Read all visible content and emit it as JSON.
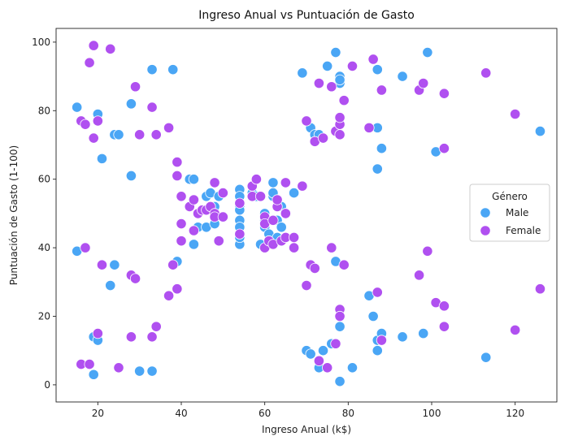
{
  "chart_data": {
    "type": "scatter",
    "title": "Ingreso Anual vs Puntuación de Gasto",
    "xlabel": "Ingreso Anual (k$)",
    "ylabel": "Puntuación de Gasto (1-100)",
    "xlim": [
      10,
      130
    ],
    "ylim": [
      -5,
      104
    ],
    "xticks": [
      20,
      40,
      60,
      80,
      100,
      120
    ],
    "yticks": [
      0,
      20,
      40,
      60,
      80,
      100
    ],
    "grid": false,
    "legend": {
      "title": "Género",
      "placement": "center-right"
    },
    "series": [
      {
        "name": "Male",
        "color": "#4aa6f5",
        "points": [
          [
            15,
            39
          ],
          [
            15,
            81
          ],
          [
            19,
            3
          ],
          [
            19,
            14
          ],
          [
            20,
            79
          ],
          [
            20,
            13
          ],
          [
            21,
            66
          ],
          [
            23,
            29
          ],
          [
            24,
            35
          ],
          [
            24,
            73
          ],
          [
            25,
            73
          ],
          [
            28,
            82
          ],
          [
            28,
            61
          ],
          [
            30,
            4
          ],
          [
            33,
            4
          ],
          [
            33,
            92
          ],
          [
            38,
            92
          ],
          [
            39,
            36
          ],
          [
            42,
            60
          ],
          [
            43,
            60
          ],
          [
            43,
            41
          ],
          [
            44,
            46
          ],
          [
            46,
            46
          ],
          [
            46,
            55
          ],
          [
            47,
            56
          ],
          [
            48,
            59
          ],
          [
            48,
            52
          ],
          [
            48,
            47
          ],
          [
            49,
            55
          ],
          [
            54,
            52
          ],
          [
            54,
            57
          ],
          [
            54,
            55
          ],
          [
            54,
            51
          ],
          [
            54,
            48
          ],
          [
            54,
            46
          ],
          [
            54,
            41
          ],
          [
            54,
            43
          ],
          [
            57,
            56
          ],
          [
            58,
            55
          ],
          [
            59,
            41
          ],
          [
            60,
            50
          ],
          [
            60,
            48
          ],
          [
            60,
            46
          ],
          [
            61,
            44
          ],
          [
            61,
            42
          ],
          [
            62,
            59
          ],
          [
            62,
            55
          ],
          [
            62,
            56
          ],
          [
            63,
            43
          ],
          [
            63,
            48
          ],
          [
            64,
            46
          ],
          [
            64,
            52
          ],
          [
            65,
            50
          ],
          [
            67,
            56
          ],
          [
            69,
            91
          ],
          [
            70,
            10
          ],
          [
            71,
            9
          ],
          [
            71,
            75
          ],
          [
            72,
            73
          ],
          [
            73,
            5
          ],
          [
            73,
            73
          ],
          [
            74,
            10
          ],
          [
            75,
            93
          ],
          [
            76,
            12
          ],
          [
            77,
            97
          ],
          [
            77,
            36
          ],
          [
            78,
            90
          ],
          [
            78,
            88
          ],
          [
            78,
            89
          ],
          [
            78,
            17
          ],
          [
            78,
            1
          ],
          [
            81,
            5
          ],
          [
            85,
            26
          ],
          [
            86,
            20
          ],
          [
            87,
            63
          ],
          [
            87,
            92
          ],
          [
            87,
            75
          ],
          [
            87,
            13
          ],
          [
            87,
            10
          ],
          [
            88,
            69
          ],
          [
            88,
            15
          ],
          [
            93,
            14
          ],
          [
            93,
            90
          ],
          [
            98,
            15
          ],
          [
            99,
            97
          ],
          [
            101,
            68
          ],
          [
            113,
            8
          ],
          [
            126,
            74
          ]
        ]
      },
      {
        "name": "Female",
        "color": "#b050f0",
        "points": [
          [
            16,
            6
          ],
          [
            16,
            77
          ],
          [
            17,
            40
          ],
          [
            17,
            76
          ],
          [
            18,
            6
          ],
          [
            18,
            94
          ],
          [
            19,
            99
          ],
          [
            19,
            72
          ],
          [
            20,
            77
          ],
          [
            20,
            15
          ],
          [
            21,
            35
          ],
          [
            23,
            98
          ],
          [
            25,
            5
          ],
          [
            28,
            14
          ],
          [
            28,
            32
          ],
          [
            29,
            87
          ],
          [
            29,
            31
          ],
          [
            30,
            73
          ],
          [
            33,
            14
          ],
          [
            33,
            81
          ],
          [
            34,
            17
          ],
          [
            34,
            73
          ],
          [
            37,
            26
          ],
          [
            37,
            75
          ],
          [
            38,
            35
          ],
          [
            39,
            61
          ],
          [
            39,
            28
          ],
          [
            39,
            65
          ],
          [
            40,
            55
          ],
          [
            40,
            47
          ],
          [
            40,
            42
          ],
          [
            42,
            52
          ],
          [
            43,
            54
          ],
          [
            43,
            45
          ],
          [
            44,
            50
          ],
          [
            45,
            51
          ],
          [
            46,
            51
          ],
          [
            47,
            52
          ],
          [
            48,
            50
          ],
          [
            48,
            49
          ],
          [
            48,
            59
          ],
          [
            49,
            42
          ],
          [
            50,
            56
          ],
          [
            50,
            49
          ],
          [
            54,
            53
          ],
          [
            54,
            44
          ],
          [
            57,
            58
          ],
          [
            57,
            55
          ],
          [
            58,
            60
          ],
          [
            59,
            55
          ],
          [
            60,
            49
          ],
          [
            60,
            47
          ],
          [
            60,
            40
          ],
          [
            61,
            42
          ],
          [
            62,
            41
          ],
          [
            62,
            48
          ],
          [
            63,
            52
          ],
          [
            63,
            54
          ],
          [
            64,
            42
          ],
          [
            65,
            43
          ],
          [
            65,
            59
          ],
          [
            65,
            50
          ],
          [
            67,
            43
          ],
          [
            67,
            40
          ],
          [
            69,
            58
          ],
          [
            70,
            29
          ],
          [
            70,
            77
          ],
          [
            71,
            35
          ],
          [
            72,
            34
          ],
          [
            72,
            71
          ],
          [
            73,
            88
          ],
          [
            73,
            7
          ],
          [
            74,
            72
          ],
          [
            75,
            5
          ],
          [
            76,
            87
          ],
          [
            76,
            40
          ],
          [
            77,
            74
          ],
          [
            77,
            12
          ],
          [
            78,
            22
          ],
          [
            78,
            20
          ],
          [
            78,
            76
          ],
          [
            78,
            78
          ],
          [
            78,
            73
          ],
          [
            79,
            83
          ],
          [
            79,
            35
          ],
          [
            81,
            93
          ],
          [
            85,
            75
          ],
          [
            86,
            95
          ],
          [
            87,
            27
          ],
          [
            88,
            86
          ],
          [
            88,
            13
          ],
          [
            97,
            32
          ],
          [
            97,
            86
          ],
          [
            98,
            88
          ],
          [
            99,
            39
          ],
          [
            101,
            24
          ],
          [
            103,
            23
          ],
          [
            103,
            17
          ],
          [
            103,
            69
          ],
          [
            103,
            85
          ],
          [
            113,
            91
          ],
          [
            120,
            16
          ],
          [
            120,
            79
          ],
          [
            126,
            28
          ]
        ]
      }
    ]
  }
}
